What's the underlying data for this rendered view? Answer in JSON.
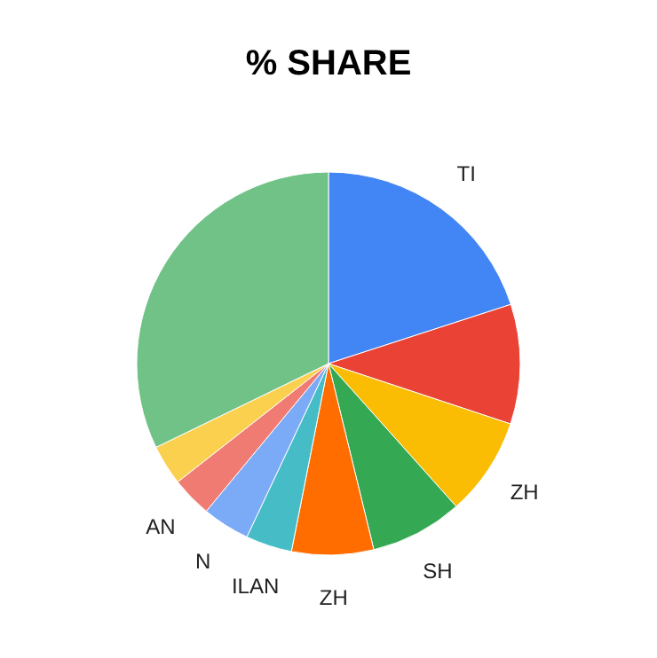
{
  "chart_data": {
    "type": "pie",
    "title": "% SHARE",
    "categories": [
      "TI",
      null,
      "ZH",
      "SH",
      "ZH",
      "ILAN",
      "N",
      "AN",
      null,
      null
    ],
    "values": [
      20,
      10.1,
      8.3,
      7.8,
      6.9,
      3.9,
      4.0,
      3.4,
      3.4,
      32.2
    ],
    "colors": [
      "#4285f4",
      "#ea4335",
      "#fbbc04",
      "#34a853",
      "#ff6d01",
      "#46bdc6",
      "#7baaf7",
      "#f07b72",
      "#fcd04f",
      "#71c287"
    ]
  }
}
